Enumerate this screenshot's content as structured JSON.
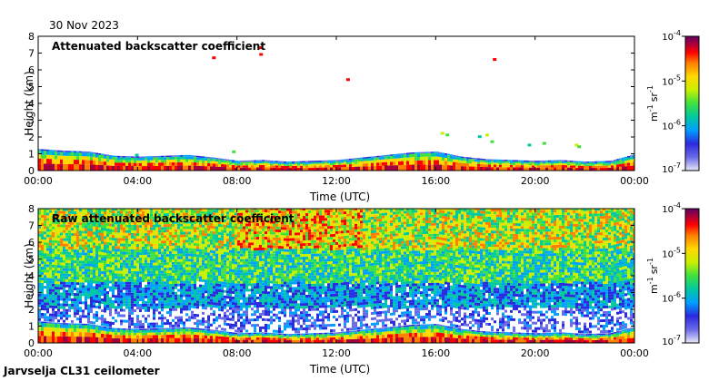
{
  "date_label": "30 Nov 2023",
  "footer_label": "Jarvselja CL31 ceilometer",
  "colors": {
    "palette": [
      "#e8e8f8",
      "#6a6ae8",
      "#2a2ae0",
      "#00a0ff",
      "#00c8a0",
      "#40e040",
      "#c8f000",
      "#ffd800",
      "#ff8000",
      "#ff0000",
      "#a00040",
      "#600060"
    ]
  },
  "chart_data": [
    {
      "type": "heatmap",
      "title": "Attenuated backscatter coefficient",
      "xlabel": "Time (UTC)",
      "ylabel": "Height (km)",
      "x_ticks": [
        "00:00",
        "04:00",
        "08:00",
        "12:00",
        "16:00",
        "20:00",
        "00:00"
      ],
      "y_ticks": [
        "0",
        "1",
        "2",
        "3",
        "4",
        "5",
        "6",
        "7",
        "8"
      ],
      "xlim": [
        0,
        24
      ],
      "ylim": [
        0,
        8
      ],
      "colorbar": {
        "unit_base": "m",
        "unit_base_exp": "-1",
        "unit_sr": "sr",
        "unit_sr_exp": "-1",
        "tick_base": "10",
        "tick_exponents": [
          "-4",
          "-5",
          "-6",
          "-7"
        ],
        "tick_values": [
          -4,
          -5,
          -6,
          -7
        ],
        "range_log10": [
          -7,
          -4
        ]
      },
      "layer_top_km": [
        [
          0,
          1.2
        ],
        [
          1,
          1.1
        ],
        [
          2,
          1.05
        ],
        [
          3,
          0.8
        ],
        [
          4,
          0.75
        ],
        [
          5,
          0.8
        ],
        [
          6,
          0.85
        ],
        [
          7,
          0.7
        ],
        [
          8,
          0.5
        ],
        [
          9,
          0.55
        ],
        [
          10,
          0.45
        ],
        [
          11,
          0.5
        ],
        [
          12,
          0.55
        ],
        [
          13,
          0.7
        ],
        [
          14,
          0.85
        ],
        [
          15,
          1.0
        ],
        [
          16,
          1.05
        ],
        [
          17,
          0.75
        ],
        [
          18,
          0.6
        ],
        [
          19,
          0.55
        ],
        [
          20,
          0.5
        ],
        [
          21,
          0.55
        ],
        [
          22,
          0.45
        ],
        [
          23,
          0.5
        ],
        [
          24,
          0.9
        ]
      ]
    },
    {
      "type": "heatmap",
      "title": "Raw attenuated backscatter coefficient",
      "xlabel": "Time (UTC)",
      "ylabel": "Height (km)",
      "x_ticks": [
        "00:00",
        "04:00",
        "08:00",
        "12:00",
        "16:00",
        "20:00",
        "00:00"
      ],
      "y_ticks": [
        "0",
        "1",
        "2",
        "3",
        "4",
        "5",
        "6",
        "7",
        "8"
      ],
      "xlim": [
        0,
        24
      ],
      "ylim": [
        0,
        8
      ],
      "colorbar": {
        "unit_base": "m",
        "unit_base_exp": "-1",
        "unit_sr": "sr",
        "unit_sr_exp": "-1",
        "tick_base": "10",
        "tick_exponents": [
          "-4",
          "-5",
          "-6",
          "-7"
        ],
        "tick_values": [
          -4,
          -5,
          -6,
          -7
        ],
        "range_log10": [
          -7,
          -4
        ]
      },
      "layer_top_km": [
        [
          0,
          1.2
        ],
        [
          1,
          1.1
        ],
        [
          2,
          1.05
        ],
        [
          3,
          0.8
        ],
        [
          4,
          0.75
        ],
        [
          5,
          0.8
        ],
        [
          6,
          0.85
        ],
        [
          7,
          0.7
        ],
        [
          8,
          0.5
        ],
        [
          9,
          0.55
        ],
        [
          10,
          0.45
        ],
        [
          11,
          0.5
        ],
        [
          12,
          0.55
        ],
        [
          13,
          0.7
        ],
        [
          14,
          0.85
        ],
        [
          15,
          1.0
        ],
        [
          16,
          1.05
        ],
        [
          17,
          0.75
        ],
        [
          18,
          0.6
        ],
        [
          19,
          0.55
        ],
        [
          20,
          0.5
        ],
        [
          21,
          0.55
        ],
        [
          22,
          0.45
        ],
        [
          23,
          0.5
        ],
        [
          24,
          0.9
        ]
      ]
    }
  ]
}
